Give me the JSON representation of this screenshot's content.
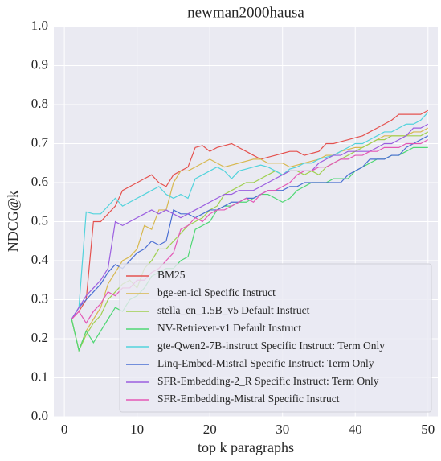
{
  "chart_data": {
    "type": "line",
    "title": "newman2000hausa",
    "xlabel": "top k paragraphs",
    "ylabel": "NDCG@k",
    "x": [
      1,
      2,
      3,
      4,
      5,
      6,
      7,
      8,
      9,
      10,
      11,
      12,
      13,
      14,
      15,
      16,
      17,
      18,
      19,
      20,
      21,
      22,
      23,
      24,
      25,
      26,
      27,
      28,
      29,
      30,
      31,
      32,
      33,
      34,
      35,
      36,
      37,
      38,
      39,
      40,
      41,
      42,
      43,
      44,
      45,
      46,
      47,
      48,
      49,
      50
    ],
    "series": [
      {
        "name": "BM25",
        "color": "#e5524f",
        "values": [
          0.25,
          0.27,
          0.3,
          0.5,
          0.5,
          0.52,
          0.54,
          0.58,
          0.59,
          0.6,
          0.61,
          0.62,
          0.6,
          0.59,
          0.62,
          0.63,
          0.64,
          0.69,
          0.695,
          0.68,
          0.69,
          0.695,
          0.7,
          0.69,
          0.68,
          0.67,
          0.66,
          0.665,
          0.67,
          0.675,
          0.68,
          0.68,
          0.67,
          0.675,
          0.68,
          0.7,
          0.7,
          0.705,
          0.71,
          0.715,
          0.72,
          0.73,
          0.74,
          0.75,
          0.76,
          0.775,
          0.775,
          0.775,
          0.775,
          0.785
        ]
      },
      {
        "name": "bge-en-icl Specific Instruct",
        "color": "#d7b84f",
        "values": [
          0.25,
          0.17,
          0.22,
          0.25,
          0.28,
          0.34,
          0.37,
          0.4,
          0.41,
          0.43,
          0.49,
          0.48,
          0.53,
          0.53,
          0.6,
          0.63,
          0.63,
          0.64,
          0.65,
          0.66,
          0.65,
          0.64,
          0.645,
          0.65,
          0.655,
          0.66,
          0.66,
          0.65,
          0.65,
          0.65,
          0.64,
          0.645,
          0.65,
          0.655,
          0.66,
          0.67,
          0.67,
          0.68,
          0.685,
          0.69,
          0.69,
          0.7,
          0.71,
          0.72,
          0.72,
          0.72,
          0.72,
          0.73,
          0.73,
          0.74
        ]
      },
      {
        "name": "stella_en_1.5B_v5 Default Instruct",
        "color": "#9fd050",
        "values": [
          0.25,
          0.17,
          0.21,
          0.24,
          0.26,
          0.3,
          0.32,
          0.34,
          0.35,
          0.33,
          0.38,
          0.4,
          0.43,
          0.43,
          0.45,
          0.47,
          0.49,
          0.5,
          0.51,
          0.53,
          0.54,
          0.57,
          0.58,
          0.59,
          0.6,
          0.6,
          0.61,
          0.62,
          0.63,
          0.62,
          0.63,
          0.63,
          0.62,
          0.63,
          0.62,
          0.64,
          0.65,
          0.66,
          0.67,
          0.68,
          0.69,
          0.7,
          0.71,
          0.71,
          0.72,
          0.72,
          0.72,
          0.72,
          0.72,
          0.73
        ]
      },
      {
        "name": "NV-Retriever-v1 Default Instruct",
        "color": "#4fd774",
        "values": [
          0.25,
          0.17,
          0.22,
          0.19,
          0.22,
          0.25,
          0.28,
          0.27,
          0.3,
          0.31,
          0.33,
          0.36,
          0.37,
          0.38,
          0.38,
          0.4,
          0.41,
          0.48,
          0.49,
          0.5,
          0.53,
          0.54,
          0.54,
          0.55,
          0.55,
          0.56,
          0.57,
          0.57,
          0.56,
          0.55,
          0.56,
          0.58,
          0.59,
          0.6,
          0.6,
          0.6,
          0.61,
          0.61,
          0.61,
          0.63,
          0.64,
          0.65,
          0.66,
          0.66,
          0.67,
          0.67,
          0.68,
          0.69,
          0.69,
          0.69
        ]
      },
      {
        "name": "gte-Qwen2-7B-instruct Specific Instruct: Term Only",
        "color": "#52d3dc",
        "values": [
          0.25,
          0.28,
          0.525,
          0.52,
          0.52,
          0.54,
          0.56,
          0.54,
          0.55,
          0.56,
          0.57,
          0.58,
          0.59,
          0.57,
          0.56,
          0.57,
          0.56,
          0.61,
          0.62,
          0.63,
          0.64,
          0.63,
          0.61,
          0.63,
          0.635,
          0.64,
          0.645,
          0.64,
          0.63,
          0.62,
          0.635,
          0.64,
          0.65,
          0.65,
          0.66,
          0.665,
          0.67,
          0.68,
          0.69,
          0.7,
          0.7,
          0.71,
          0.72,
          0.73,
          0.73,
          0.74,
          0.75,
          0.75,
          0.76,
          0.78
        ]
      },
      {
        "name": "Linq-Embed-Mistral Specific Instruct: Term Only",
        "color": "#4b6fd3",
        "values": [
          0.25,
          0.28,
          0.3,
          0.32,
          0.34,
          0.37,
          0.39,
          0.38,
          0.4,
          0.42,
          0.43,
          0.45,
          0.44,
          0.45,
          0.53,
          0.52,
          0.52,
          0.51,
          0.52,
          0.53,
          0.53,
          0.54,
          0.55,
          0.55,
          0.56,
          0.56,
          0.57,
          0.58,
          0.58,
          0.58,
          0.59,
          0.59,
          0.6,
          0.6,
          0.6,
          0.6,
          0.6,
          0.6,
          0.62,
          0.63,
          0.64,
          0.66,
          0.66,
          0.66,
          0.67,
          0.67,
          0.69,
          0.7,
          0.71,
          0.72
        ]
      },
      {
        "name": "SFR-Embedding-2_R Specific Instruct: Term Only",
        "color": "#9b5ee0",
        "values": [
          0.25,
          0.28,
          0.31,
          0.33,
          0.35,
          0.38,
          0.5,
          0.49,
          0.5,
          0.51,
          0.52,
          0.53,
          0.52,
          0.53,
          0.52,
          0.51,
          0.52,
          0.53,
          0.54,
          0.55,
          0.56,
          0.57,
          0.57,
          0.58,
          0.58,
          0.58,
          0.59,
          0.6,
          0.61,
          0.62,
          0.63,
          0.63,
          0.63,
          0.63,
          0.65,
          0.66,
          0.67,
          0.67,
          0.68,
          0.68,
          0.68,
          0.68,
          0.69,
          0.7,
          0.7,
          0.71,
          0.72,
          0.74,
          0.74,
          0.75
        ]
      },
      {
        "name": "SFR-Embedding-Mistral Specific Instruct",
        "color": "#e458b6",
        "values": [
          0.25,
          0.27,
          0.24,
          0.27,
          0.29,
          0.32,
          0.31,
          0.33,
          0.33,
          0.35,
          0.35,
          0.37,
          0.38,
          0.4,
          0.42,
          0.48,
          0.49,
          0.51,
          0.5,
          0.52,
          0.53,
          0.53,
          0.54,
          0.55,
          0.56,
          0.55,
          0.57,
          0.58,
          0.58,
          0.59,
          0.6,
          0.62,
          0.63,
          0.63,
          0.64,
          0.64,
          0.65,
          0.66,
          0.66,
          0.67,
          0.67,
          0.68,
          0.68,
          0.69,
          0.69,
          0.69,
          0.7,
          0.7,
          0.7,
          0.71
        ]
      }
    ],
    "xlim": [
      -1.45,
      51.35
    ],
    "xticks": [
      0,
      10,
      20,
      30,
      40,
      50
    ],
    "ylim": [
      0,
      1
    ],
    "yticks": [
      {
        "value": 0,
        "label": "0.0"
      },
      {
        "value": 0.1,
        "label": "0.1"
      },
      {
        "value": 0.2,
        "label": "0.2"
      },
      {
        "value": 0.3,
        "label": "0.3"
      },
      {
        "value": 0.4,
        "label": "0.4"
      },
      {
        "value": 0.5,
        "label": "0.5"
      },
      {
        "value": 0.6,
        "label": "0.6"
      },
      {
        "value": 0.7,
        "label": "0.7"
      },
      {
        "value": 0.8,
        "label": "0.8"
      },
      {
        "value": 0.9,
        "label": "0.9"
      },
      {
        "value": 1,
        "label": "1.0"
      }
    ],
    "grid": true,
    "legend": "lower right"
  }
}
